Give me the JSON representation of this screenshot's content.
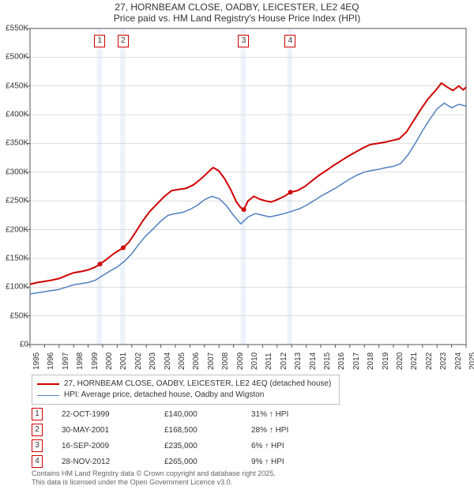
{
  "title_line1": "27, HORNBEAM CLOSE, OADBY, LEICESTER, LE2 4EQ",
  "title_line2": "Price paid vs. HM Land Registry's House Price Index (HPI)",
  "chart": {
    "type": "line",
    "background_color": "#ffffff",
    "grid_color": "#bfbfbf",
    "axis_color": "#555555",
    "x_min_year": 1995,
    "x_max_year": 2025,
    "x_ticks": [
      1995,
      1996,
      1997,
      1998,
      1999,
      2000,
      2001,
      2002,
      2003,
      2004,
      2005,
      2006,
      2007,
      2008,
      2009,
      2010,
      2011,
      2012,
      2013,
      2014,
      2015,
      2016,
      2017,
      2018,
      2019,
      2020,
      2021,
      2022,
      2023,
      2024,
      2025
    ],
    "y_min": 0,
    "y_max": 550000,
    "y_ticks": [
      0,
      50000,
      100000,
      150000,
      200000,
      250000,
      300000,
      350000,
      400000,
      450000,
      500000,
      550000
    ],
    "y_tick_labels": [
      "£0",
      "£50K",
      "£100K",
      "£150K",
      "£200K",
      "£250K",
      "£300K",
      "£350K",
      "£400K",
      "£450K",
      "£500K",
      "£550K"
    ],
    "highlight_bands": [
      {
        "from_year": 1999.6,
        "to_year": 1999.95,
        "fill": "#eef3fb"
      },
      {
        "from_year": 2001.2,
        "to_year": 2001.55,
        "fill": "#eef3fb"
      },
      {
        "from_year": 2009.5,
        "to_year": 2009.85,
        "fill": "#eef3fb"
      },
      {
        "from_year": 2012.7,
        "to_year": 2013.05,
        "fill": "#eef3fb"
      }
    ],
    "markers": [
      {
        "label": "1",
        "year": 1999.8
      },
      {
        "label": "2",
        "year": 2001.4
      },
      {
        "label": "3",
        "year": 2009.7
      },
      {
        "label": "4",
        "year": 2012.9
      }
    ],
    "series": [
      {
        "name": "price_paid",
        "label": "27, HORNBEAM CLOSE, OADBY, LEICESTER, LE2 4EQ (detached house)",
        "color": "#d00000",
        "line_width": 2,
        "marker_years": [
          1999.81,
          2001.41,
          2009.71,
          2012.91
        ],
        "marker_values": [
          140000,
          168500,
          235000,
          265000
        ],
        "marker_radius": 3,
        "points": [
          [
            1995.0,
            105000
          ],
          [
            1995.5,
            108000
          ],
          [
            1996.0,
            110000
          ],
          [
            1996.5,
            112000
          ],
          [
            1997.0,
            115000
          ],
          [
            1997.5,
            120000
          ],
          [
            1998.0,
            125000
          ],
          [
            1998.5,
            127000
          ],
          [
            1999.0,
            130000
          ],
          [
            1999.5,
            135000
          ],
          [
            1999.81,
            140000
          ],
          [
            2000.25,
            148000
          ],
          [
            2000.75,
            158000
          ],
          [
            2001.41,
            168500
          ],
          [
            2001.8,
            178000
          ],
          [
            2002.25,
            195000
          ],
          [
            2002.75,
            215000
          ],
          [
            2003.25,
            232000
          ],
          [
            2003.75,
            245000
          ],
          [
            2004.25,
            258000
          ],
          [
            2004.75,
            268000
          ],
          [
            2005.25,
            270000
          ],
          [
            2005.75,
            272000
          ],
          [
            2006.25,
            278000
          ],
          [
            2006.75,
            288000
          ],
          [
            2007.25,
            300000
          ],
          [
            2007.6,
            308000
          ],
          [
            2008.0,
            302000
          ],
          [
            2008.4,
            288000
          ],
          [
            2008.8,
            270000
          ],
          [
            2009.2,
            248000
          ],
          [
            2009.5,
            238000
          ],
          [
            2009.71,
            235000
          ],
          [
            2010.0,
            250000
          ],
          [
            2010.4,
            258000
          ],
          [
            2010.8,
            253000
          ],
          [
            2011.2,
            250000
          ],
          [
            2011.6,
            248000
          ],
          [
            2012.0,
            252000
          ],
          [
            2012.5,
            258000
          ],
          [
            2012.91,
            265000
          ],
          [
            2013.4,
            268000
          ],
          [
            2013.9,
            275000
          ],
          [
            2014.4,
            285000
          ],
          [
            2014.9,
            295000
          ],
          [
            2015.4,
            303000
          ],
          [
            2015.9,
            312000
          ],
          [
            2016.4,
            320000
          ],
          [
            2016.9,
            328000
          ],
          [
            2017.4,
            335000
          ],
          [
            2017.9,
            342000
          ],
          [
            2018.4,
            348000
          ],
          [
            2018.9,
            350000
          ],
          [
            2019.4,
            352000
          ],
          [
            2019.9,
            355000
          ],
          [
            2020.4,
            358000
          ],
          [
            2020.9,
            370000
          ],
          [
            2021.4,
            390000
          ],
          [
            2021.9,
            410000
          ],
          [
            2022.4,
            428000
          ],
          [
            2022.9,
            442000
          ],
          [
            2023.3,
            455000
          ],
          [
            2023.7,
            448000
          ],
          [
            2024.1,
            442000
          ],
          [
            2024.5,
            450000
          ],
          [
            2024.8,
            443000
          ],
          [
            2025.0,
            448000
          ]
        ]
      },
      {
        "name": "hpi",
        "label": "HPI: Average price, detached house, Oadby and Wigston",
        "color": "#4f7fbf",
        "line_width": 1.5,
        "points": [
          [
            1995.0,
            88000
          ],
          [
            1995.5,
            90000
          ],
          [
            1996.0,
            92000
          ],
          [
            1996.5,
            94000
          ],
          [
            1997.0,
            96000
          ],
          [
            1997.5,
            100000
          ],
          [
            1998.0,
            104000
          ],
          [
            1998.5,
            106000
          ],
          [
            1999.0,
            108000
          ],
          [
            1999.5,
            112000
          ],
          [
            2000.0,
            120000
          ],
          [
            2000.5,
            128000
          ],
          [
            2001.0,
            135000
          ],
          [
            2001.5,
            145000
          ],
          [
            2002.0,
            158000
          ],
          [
            2002.5,
            175000
          ],
          [
            2003.0,
            190000
          ],
          [
            2003.5,
            202000
          ],
          [
            2004.0,
            215000
          ],
          [
            2004.5,
            225000
          ],
          [
            2005.0,
            228000
          ],
          [
            2005.5,
            230000
          ],
          [
            2006.0,
            235000
          ],
          [
            2006.5,
            242000
          ],
          [
            2007.0,
            252000
          ],
          [
            2007.5,
            258000
          ],
          [
            2008.0,
            254000
          ],
          [
            2008.5,
            242000
          ],
          [
            2009.0,
            225000
          ],
          [
            2009.5,
            210000
          ],
          [
            2010.0,
            222000
          ],
          [
            2010.5,
            228000
          ],
          [
            2011.0,
            225000
          ],
          [
            2011.5,
            222000
          ],
          [
            2012.0,
            225000
          ],
          [
            2012.5,
            228000
          ],
          [
            2013.0,
            232000
          ],
          [
            2013.5,
            236000
          ],
          [
            2014.0,
            242000
          ],
          [
            2014.5,
            250000
          ],
          [
            2015.0,
            258000
          ],
          [
            2015.5,
            265000
          ],
          [
            2016.0,
            272000
          ],
          [
            2016.5,
            280000
          ],
          [
            2017.0,
            288000
          ],
          [
            2017.5,
            295000
          ],
          [
            2018.0,
            300000
          ],
          [
            2018.5,
            303000
          ],
          [
            2019.0,
            305000
          ],
          [
            2019.5,
            308000
          ],
          [
            2020.0,
            310000
          ],
          [
            2020.5,
            315000
          ],
          [
            2021.0,
            330000
          ],
          [
            2021.5,
            350000
          ],
          [
            2022.0,
            372000
          ],
          [
            2022.5,
            392000
          ],
          [
            2023.0,
            410000
          ],
          [
            2023.5,
            420000
          ],
          [
            2024.0,
            412000
          ],
          [
            2024.5,
            418000
          ],
          [
            2025.0,
            415000
          ]
        ]
      }
    ]
  },
  "legend": {
    "border_color": "#bfbfbf",
    "items": [
      {
        "color": "#d00000",
        "width": 2,
        "label": "27, HORNBEAM CLOSE, OADBY, LEICESTER, LE2 4EQ (detached house)"
      },
      {
        "color": "#4f7fbf",
        "width": 1.5,
        "label": "HPI: Average price, detached house, Oadby and Wigston"
      }
    ]
  },
  "sales": [
    {
      "n": "1",
      "date": "22-OCT-1999",
      "price": "£140,000",
      "delta": "31% ↑ HPI"
    },
    {
      "n": "2",
      "date": "30-MAY-2001",
      "price": "£168,500",
      "delta": "28% ↑ HPI"
    },
    {
      "n": "3",
      "date": "16-SEP-2009",
      "price": "£235,000",
      "delta": "6% ↑ HPI"
    },
    {
      "n": "4",
      "date": "28-NOV-2012",
      "price": "£265,000",
      "delta": "9% ↑ HPI"
    }
  ],
  "footer_line1": "Contains HM Land Registry data © Crown copyright and database right 2025.",
  "footer_line2": "This data is licensed under the Open Government Licence v3.0."
}
